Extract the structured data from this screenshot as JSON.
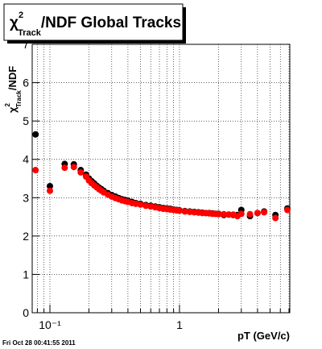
{
  "chart_data": {
    "type": "scatter",
    "title": {
      "symbol": "χ",
      "sup": "2",
      "sub": "Track",
      "text": "/NDF  Global Tracks"
    },
    "y_label": {
      "symbol": "χ",
      "sup": "2",
      "sub": "Track",
      "text": "/NDF"
    },
    "x_label": "pT (GeV/c)",
    "footer": "Fri Oct 28 00:41:55 2011",
    "log_x": true,
    "grid": true,
    "xlim": [
      0.073,
      7.1
    ],
    "xticks": [
      {
        "value": 0.1,
        "label": "10⁻¹"
      },
      1
    ],
    "xminor": [
      0.08,
      0.09,
      0.2,
      0.3,
      0.4,
      0.5,
      0.6,
      0.7,
      0.8,
      0.9,
      2,
      3,
      4,
      5,
      6,
      7
    ],
    "ylim": [
      0,
      7
    ],
    "yticks": [
      0,
      1,
      2,
      3,
      4,
      5,
      6,
      7
    ],
    "x": [
      0.0775,
      0.1,
      0.13,
      0.153,
      0.173,
      0.19,
      0.2,
      0.21,
      0.22,
      0.23,
      0.24,
      0.25,
      0.26,
      0.28,
      0.3,
      0.32,
      0.34,
      0.36,
      0.38,
      0.4,
      0.43,
      0.46,
      0.5,
      0.55,
      0.6,
      0.65,
      0.7,
      0.75,
      0.8,
      0.85,
      0.9,
      0.95,
      1.0,
      1.1,
      1.2,
      1.3,
      1.4,
      1.5,
      1.6,
      1.7,
      1.8,
      1.9,
      2.0,
      2.2,
      2.4,
      2.6,
      2.8,
      3.0,
      3.5,
      4.0,
      4.5,
      5.5,
      6.8
    ],
    "series": [
      {
        "color": "#000000",
        "values": [
          4.65,
          3.3,
          3.88,
          3.87,
          3.72,
          3.6,
          3.5,
          3.43,
          3.37,
          3.31,
          3.26,
          3.22,
          3.18,
          3.12,
          3.07,
          3.03,
          2.99,
          2.96,
          2.94,
          2.92,
          2.89,
          2.86,
          2.84,
          2.81,
          2.79,
          2.77,
          2.75,
          2.73,
          2.72,
          2.71,
          2.69,
          2.68,
          2.67,
          2.65,
          2.64,
          2.63,
          2.62,
          2.61,
          2.6,
          2.6,
          2.59,
          2.58,
          2.58,
          2.55,
          2.56,
          2.55,
          2.55,
          2.68,
          2.52,
          2.6,
          2.64,
          2.55,
          2.72
        ]
      },
      {
        "color": "#ff0000",
        "values": [
          3.72,
          3.18,
          3.78,
          3.8,
          3.66,
          3.55,
          3.45,
          3.38,
          3.32,
          3.27,
          3.22,
          3.18,
          3.14,
          3.08,
          3.03,
          2.99,
          2.96,
          2.93,
          2.91,
          2.89,
          2.86,
          2.84,
          2.82,
          2.79,
          2.77,
          2.75,
          2.73,
          2.71,
          2.7,
          2.69,
          2.68,
          2.67,
          2.66,
          2.64,
          2.63,
          2.62,
          2.61,
          2.6,
          2.6,
          2.59,
          2.58,
          2.58,
          2.57,
          2.57,
          2.56,
          2.56,
          2.52,
          2.58,
          2.57,
          2.6,
          2.62,
          2.47,
          2.68
        ]
      }
    ]
  }
}
